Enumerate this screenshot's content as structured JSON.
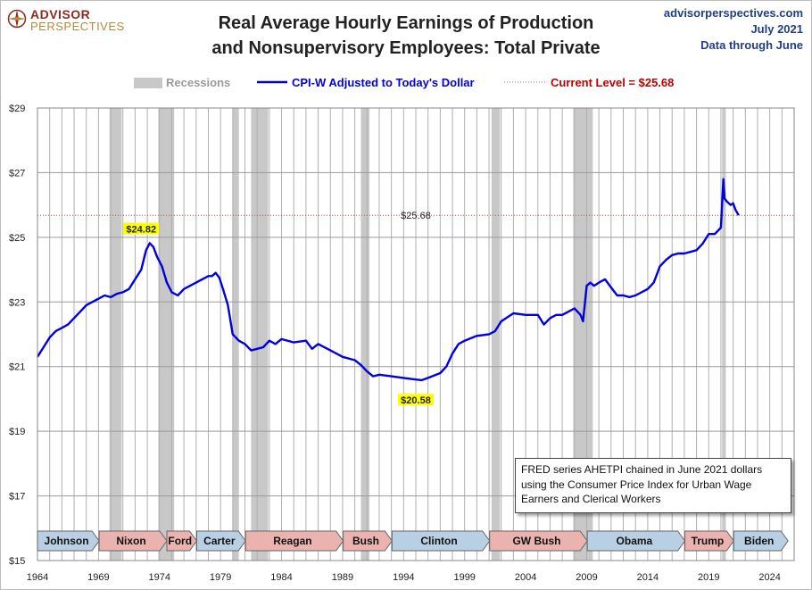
{
  "logo": {
    "line1": "ADVISOR",
    "line2": "PERSPECTIVES"
  },
  "header": {
    "title_line1": "Real Average Hourly Earnings of Production",
    "title_line2": "and Nonsupervisory Employees: Total Private",
    "source_site": "advisorperspectives.com",
    "source_date": "July 2021",
    "source_through": "Data through June"
  },
  "legend": {
    "recessions": "Recessions",
    "series": "CPI-W Adjusted to Today's Dollar",
    "current": "Current Level = $25.68"
  },
  "annotations": {
    "high_label": "$24.82",
    "low_label": "$20.58",
    "current_label": "$25.68"
  },
  "note": "FRED series AHETPI chained in June 2021 dollars using the Consumer Price Index for Urban Wage Earners and Clerical Workers",
  "colors": {
    "series": "#0000e0",
    "current_line": "#c0504d",
    "current_text": "#c00000",
    "recession": "#c8c8c8",
    "dem": "#b9cfe4",
    "rep": "#eab3b0",
    "label_highlight": "#ffff00"
  },
  "presidents": [
    {
      "name": "Johnson",
      "party": "D",
      "start": 1964.0,
      "end": 1969.05
    },
    {
      "name": "Nixon",
      "party": "R",
      "start": 1969.05,
      "end": 1974.6
    },
    {
      "name": "Ford",
      "party": "R",
      "start": 1974.6,
      "end": 1977.05
    },
    {
      "name": "Carter",
      "party": "D",
      "start": 1977.05,
      "end": 1981.05
    },
    {
      "name": "Reagan",
      "party": "R",
      "start": 1981.05,
      "end": 1989.05
    },
    {
      "name": "Bush",
      "party": "R",
      "start": 1989.05,
      "end": 1993.05
    },
    {
      "name": "Clinton",
      "party": "D",
      "start": 1993.05,
      "end": 2001.05
    },
    {
      "name": "GW Bush",
      "party": "R",
      "start": 2001.05,
      "end": 2009.05
    },
    {
      "name": "Obama",
      "party": "D",
      "start": 2009.05,
      "end": 2017.05
    },
    {
      "name": "Trump",
      "party": "R",
      "start": 2017.05,
      "end": 2021.05
    },
    {
      "name": "Biden",
      "party": "D",
      "start": 2021.05,
      "end": 2025.5
    }
  ],
  "chart_data": {
    "type": "line",
    "title": "Real Average Hourly Earnings of Production and Nonsupervisory Employees: Total Private",
    "ylim": [
      15,
      29
    ],
    "xlim": [
      1964,
      2026
    ],
    "yticks": [
      15,
      17,
      19,
      21,
      23,
      25,
      27,
      29
    ],
    "ytick_labels": [
      "$15",
      "$17",
      "$19",
      "$21",
      "$23",
      "$25",
      "$27",
      "$29"
    ],
    "xticks": [
      1964,
      1969,
      1974,
      1979,
      1984,
      1989,
      1994,
      1999,
      2004,
      2009,
      2014,
      2019,
      2024
    ],
    "xtick_labels": [
      "1964",
      "1969",
      "1974",
      "1979",
      "1984",
      "1989",
      "1994",
      "1999",
      "2004",
      "2009",
      "2014",
      "2019",
      "2024"
    ],
    "grid": true,
    "legend_placement": "top",
    "current_level": 25.68,
    "recessions": [
      [
        1969.9,
        1970.9
      ],
      [
        1973.9,
        1975.2
      ],
      [
        1980.0,
        1980.5
      ],
      [
        1981.5,
        1982.9
      ],
      [
        1990.5,
        1991.2
      ],
      [
        2001.2,
        2001.9
      ],
      [
        2007.9,
        2009.5
      ],
      [
        2020.1,
        2020.4
      ]
    ],
    "series": [
      {
        "name": "CPI-W Adjusted to Today's Dollar",
        "x": [
          1964.0,
          1964.5,
          1965.0,
          1965.5,
          1966.0,
          1966.5,
          1967.0,
          1967.5,
          1968.0,
          1968.5,
          1969.0,
          1969.5,
          1970.0,
          1970.5,
          1971.0,
          1971.5,
          1972.0,
          1972.5,
          1972.9,
          1973.2,
          1973.5,
          1973.8,
          1974.2,
          1974.6,
          1975.0,
          1975.5,
          1976.0,
          1976.5,
          1977.0,
          1977.5,
          1978.0,
          1978.3,
          1978.6,
          1978.9,
          1979.2,
          1979.6,
          1980.0,
          1980.5,
          1981.0,
          1981.5,
          1982.0,
          1982.5,
          1983.0,
          1983.5,
          1984.0,
          1985.0,
          1986.0,
          1986.5,
          1987.0,
          1988.0,
          1989.0,
          1990.0,
          1990.5,
          1991.0,
          1991.5,
          1992.0,
          1993.0,
          1994.0,
          1995.0,
          1995.5,
          1996.0,
          1997.0,
          1997.5,
          1998.0,
          1998.5,
          1999.0,
          2000.0,
          2001.0,
          2001.5,
          2002.0,
          2003.0,
          2004.0,
          2005.0,
          2005.5,
          2006.0,
          2006.5,
          2007.0,
          2007.5,
          2008.0,
          2008.5,
          2008.7,
          2009.0,
          2009.3,
          2009.6,
          2010.0,
          2010.5,
          2011.0,
          2011.5,
          2012.0,
          2012.5,
          2013.0,
          2014.0,
          2014.5,
          2015.0,
          2015.5,
          2016.0,
          2016.5,
          2017.0,
          2017.5,
          2018.0,
          2018.5,
          2019.0,
          2019.5,
          2020.0,
          2020.2,
          2020.3,
          2020.5,
          2020.8,
          2021.0,
          2021.2,
          2021.45
        ],
        "y": [
          21.3,
          21.6,
          21.9,
          22.1,
          22.2,
          22.3,
          22.5,
          22.7,
          22.9,
          23.0,
          23.1,
          23.2,
          23.15,
          23.25,
          23.3,
          23.4,
          23.7,
          24.0,
          24.6,
          24.82,
          24.7,
          24.4,
          24.1,
          23.6,
          23.3,
          23.2,
          23.4,
          23.5,
          23.6,
          23.7,
          23.8,
          23.8,
          23.9,
          23.75,
          23.4,
          22.9,
          22.0,
          21.8,
          21.7,
          21.5,
          21.55,
          21.6,
          21.8,
          21.7,
          21.85,
          21.75,
          21.8,
          21.55,
          21.7,
          21.5,
          21.3,
          21.2,
          21.05,
          20.85,
          20.7,
          20.75,
          20.7,
          20.65,
          20.6,
          20.58,
          20.65,
          20.8,
          21.0,
          21.4,
          21.7,
          21.8,
          21.95,
          22.0,
          22.1,
          22.4,
          22.65,
          22.6,
          22.6,
          22.3,
          22.5,
          22.6,
          22.6,
          22.7,
          22.8,
          22.6,
          22.4,
          23.5,
          23.6,
          23.5,
          23.6,
          23.7,
          23.45,
          23.2,
          23.2,
          23.15,
          23.2,
          23.4,
          23.6,
          24.1,
          24.3,
          24.45,
          24.5,
          24.5,
          24.55,
          24.6,
          24.8,
          25.1,
          25.1,
          25.3,
          26.8,
          26.2,
          26.1,
          26.0,
          26.05,
          25.85,
          25.68
        ]
      }
    ]
  }
}
